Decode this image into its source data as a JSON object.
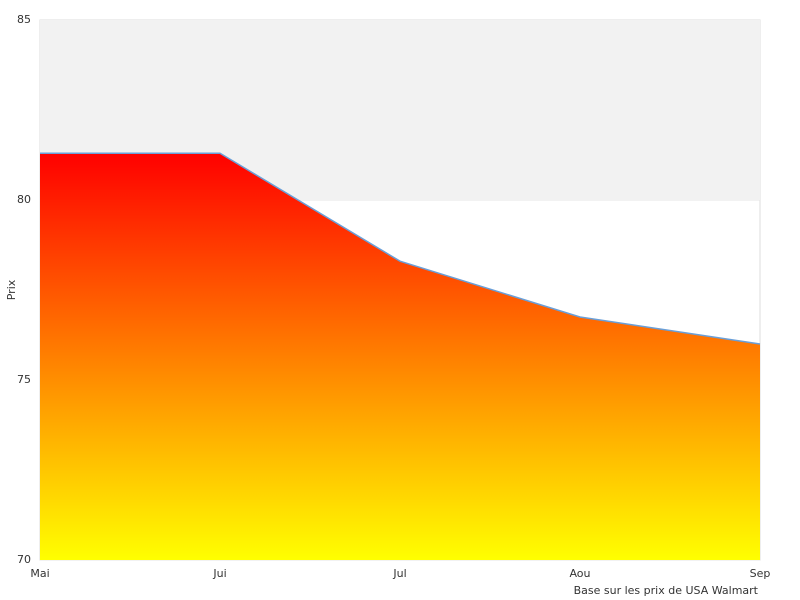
{
  "chart_data": {
    "type": "area",
    "y_label": "Prix",
    "caption": "Base sur les prix de USA Walmart",
    "categories": [
      "Mai",
      "Jui",
      "Jul",
      "Aou",
      "Sep"
    ],
    "values": [
      81.3,
      81.3,
      78.3,
      76.75,
      76.0
    ],
    "line_color": "#6a9fd8",
    "gradient": [
      "#ff0000",
      "#ffff00"
    ],
    "band_color": "#f2f2f2",
    "ylim": [
      70,
      85
    ],
    "yticks": [
      70,
      75,
      80,
      85
    ]
  }
}
